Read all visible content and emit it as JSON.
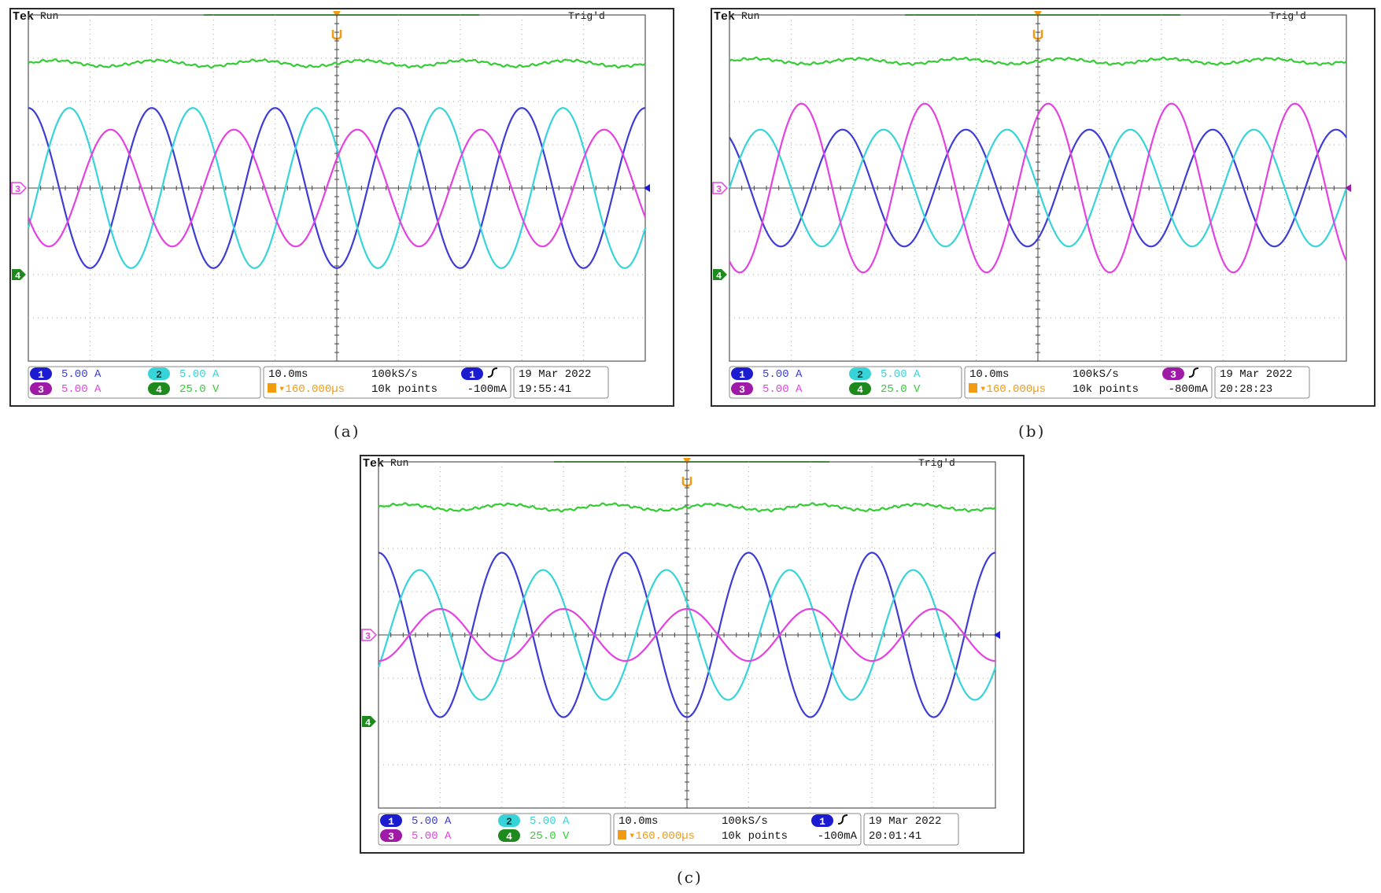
{
  "colors": {
    "ch1": "#3d3dd6",
    "ch2": "#36d4d8",
    "ch3": "#e342e0",
    "ch4": "#33cc33",
    "ch1_dark": "#1b1bd0",
    "ch3_dark": "#a01aa8",
    "ch4_dark": "#1e8a1e",
    "grid": "#a9a9a9",
    "timing_orange": "#f29a12"
  },
  "panels": [
    {
      "caption": "(a)",
      "header": {
        "brand": "Tek",
        "state": "Run",
        "trigger_status": "Trig'd"
      },
      "channels": [
        {
          "num": "1",
          "scale": "5.00 A"
        },
        {
          "num": "2",
          "scale": "5.00 A"
        },
        {
          "num": "3",
          "scale": "5.00 A"
        },
        {
          "num": "4",
          "scale": "25.0 V"
        }
      ],
      "timebase": {
        "scale": "10.0ms",
        "delay": "▾160.000µs",
        "rate": "100kS/s",
        "points": "10k points"
      },
      "trigger": {
        "channel": "1",
        "level": "-100mA"
      },
      "datetime": {
        "date": "19 Mar  2022",
        "time": "19:55:41"
      }
    },
    {
      "caption": "(b)",
      "header": {
        "brand": "Tek",
        "state": "Run",
        "trigger_status": "Trig'd"
      },
      "channels": [
        {
          "num": "1",
          "scale": "5.00 A"
        },
        {
          "num": "2",
          "scale": "5.00 A"
        },
        {
          "num": "3",
          "scale": "5.00 A"
        },
        {
          "num": "4",
          "scale": "25.0 V"
        }
      ],
      "timebase": {
        "scale": "10.0ms",
        "delay": "▾160.000µs",
        "rate": "100kS/s",
        "points": "10k points"
      },
      "trigger": {
        "channel": "3",
        "level": "-800mA"
      },
      "datetime": {
        "date": "19 Mar  2022",
        "time": "20:28:23"
      }
    },
    {
      "caption": "(c)",
      "header": {
        "brand": "Tek",
        "state": "Run",
        "trigger_status": "Trig'd"
      },
      "channels": [
        {
          "num": "1",
          "scale": "5.00 A"
        },
        {
          "num": "2",
          "scale": "5.00 A"
        },
        {
          "num": "3",
          "scale": "5.00 A"
        },
        {
          "num": "4",
          "scale": "25.0 V"
        }
      ],
      "timebase": {
        "scale": "10.0ms",
        "delay": "▾160.000µs",
        "rate": "100kS/s",
        "points": "10k points"
      },
      "trigger": {
        "channel": "1",
        "level": "-100mA"
      },
      "datetime": {
        "date": "19 Mar  2022",
        "time": "20:01:41"
      }
    }
  ],
  "chart_data": [
    {
      "type": "line",
      "x_unit": "div",
      "x_range": [
        -5,
        5
      ],
      "y_unit": "div",
      "y_range": [
        -4,
        4
      ],
      "signal_frequency_hz": 50,
      "series": [
        {
          "channel": "1",
          "color": "#3d3dd6",
          "offset_div": 0,
          "amplitude_div": 1.85,
          "phase_deg": 90
        },
        {
          "channel": "2",
          "color": "#36d4d8",
          "offset_div": 0,
          "amplitude_div": 1.85,
          "phase_deg": -30
        },
        {
          "channel": "3",
          "color": "#e342e0",
          "offset_div": 0,
          "amplitude_div": 1.35,
          "phase_deg": 210
        },
        {
          "channel": "4",
          "color": "#33cc33",
          "offset_div": 2.88,
          "amplitude_div": 0.07,
          "ripple_cycles": 6
        }
      ]
    },
    {
      "type": "line",
      "x_unit": "div",
      "x_range": [
        -5,
        5
      ],
      "y_unit": "div",
      "y_range": [
        -4,
        4
      ],
      "signal_frequency_hz": 50,
      "series": [
        {
          "channel": "1",
          "color": "#3d3dd6",
          "offset_div": 0,
          "amplitude_div": 1.35,
          "phase_deg": 120
        },
        {
          "channel": "2",
          "color": "#36d4d8",
          "offset_div": 0,
          "amplitude_div": 1.35,
          "phase_deg": 0
        },
        {
          "channel": "3",
          "color": "#e342e0",
          "offset_div": 0,
          "amplitude_div": 1.95,
          "phase_deg": 240
        },
        {
          "channel": "4",
          "color": "#33cc33",
          "offset_div": 2.93,
          "amplitude_div": 0.06,
          "ripple_cycles": 6
        }
      ]
    },
    {
      "type": "line",
      "x_unit": "div",
      "x_range": [
        -5,
        5
      ],
      "y_unit": "div",
      "y_range": [
        -4,
        4
      ],
      "signal_frequency_hz": 50,
      "series": [
        {
          "channel": "1",
          "color": "#3d3dd6",
          "offset_div": 0,
          "amplitude_div": 1.9,
          "phase_deg": 90
        },
        {
          "channel": "2",
          "color": "#36d4d8",
          "offset_div": 0,
          "amplitude_div": 1.5,
          "phase_deg": -30
        },
        {
          "channel": "3",
          "color": "#e342e0",
          "offset_div": 0,
          "amplitude_div": 0.6,
          "phase_deg": 270
        },
        {
          "channel": "4",
          "color": "#33cc33",
          "offset_div": 2.95,
          "amplitude_div": 0.07,
          "ripple_cycles": 6
        }
      ]
    }
  ]
}
